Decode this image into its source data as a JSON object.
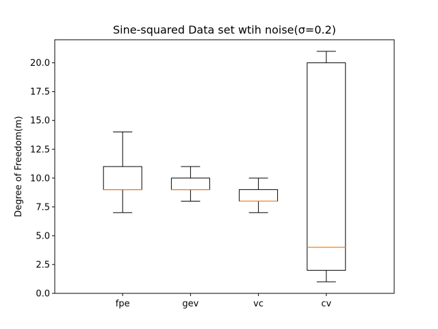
{
  "chart_data": {
    "type": "box",
    "title": "Sine-squared Data set wtih noise(σ=0.2)",
    "xlabel": "",
    "ylabel": "Degree of Freedom(m)",
    "categories": [
      "fpe",
      "gev",
      "vc",
      "cv"
    ],
    "boxes": [
      {
        "label": "fpe",
        "whislo": 7,
        "q1": 9,
        "med": 9,
        "q3": 11,
        "whishi": 14
      },
      {
        "label": "gev",
        "whislo": 8,
        "q1": 9,
        "med": 9,
        "q3": 10,
        "whishi": 11
      },
      {
        "label": "vc",
        "whislo": 7,
        "q1": 8,
        "med": 8,
        "q3": 9,
        "whishi": 10
      },
      {
        "label": "cv",
        "whislo": 1,
        "q1": 2,
        "med": 4,
        "q3": 20,
        "whishi": 21
      }
    ],
    "ylim": [
      0,
      22.0
    ],
    "yticks": [
      0.0,
      2.5,
      5.0,
      7.5,
      10.0,
      12.5,
      15.0,
      17.5,
      20.0
    ],
    "ytick_labels": [
      "0.0",
      "2.5",
      "5.0",
      "7.5",
      "10.0",
      "12.5",
      "15.0",
      "17.5",
      "20.0"
    ],
    "grid": false,
    "colors": {
      "box": "#000000",
      "median": "#ff7f0e"
    }
  }
}
